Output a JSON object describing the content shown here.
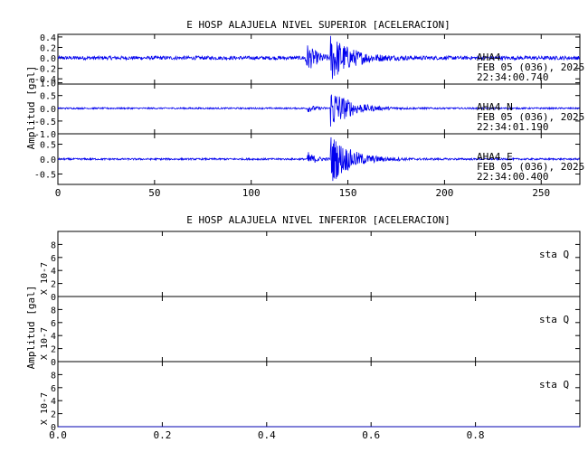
{
  "chart_data": [
    {
      "type": "line",
      "title": "E HOSP ALAJUELA NIVEL SUPERIOR [ACELERACION]",
      "ylabel": "Amplitud [gal]",
      "xlim": [
        0,
        270
      ],
      "x_ticks": [
        "0",
        "50",
        "100",
        "150",
        "200",
        "250"
      ],
      "traces": [
        {
          "label_lines": [
            "AHA4",
            "FEB 05 (036), 2025",
            "22:34:00.740"
          ],
          "ylim": [
            -0.5,
            0.45
          ],
          "y_ticks": [
            "0.4",
            "0.2",
            "0.0",
            "-0.2",
            "-0.4"
          ],
          "y_tick_values": [
            0.4,
            0.2,
            0.0,
            -0.2,
            -0.4
          ],
          "color": "#0000ee",
          "noise_amplitude": 0.035,
          "events": [
            {
              "t": 128,
              "peak": 0.3,
              "decay": 5
            },
            {
              "t": 141,
              "peak": 0.45,
              "decay": 10
            }
          ]
        },
        {
          "label_lines": [
            "AHA4   N",
            "FEB 05 (036), 2025",
            "22:34:01.190"
          ],
          "ylim": [
            -1.0,
            0.95
          ],
          "y_ticks": [
            "1.0",
            "0.5",
            "0.0",
            "-0.5",
            "-1.0"
          ],
          "y_tick_values": [
            1.0,
            0.5,
            0.0,
            -0.5,
            -1.0
          ],
          "color": "#0000ee",
          "noise_amplitude": 0.03,
          "events": [
            {
              "t": 129,
              "peak": 0.15,
              "decay": 4
            },
            {
              "t": 141,
              "peak": 0.9,
              "decay": 9
            }
          ]
        },
        {
          "label_lines": [
            "AHA4   E",
            "FEB 05 (036), 2025",
            "22:34:00.400"
          ],
          "ylim": [
            -0.85,
            0.85
          ],
          "y_ticks": [
            "0.5",
            "0.0",
            "-0.5"
          ],
          "y_tick_values": [
            0.5,
            0.0,
            -0.5
          ],
          "color": "#0000ee",
          "noise_amplitude": 0.03,
          "events": [
            {
              "t": 129,
              "peak": 0.25,
              "decay": 4
            },
            {
              "t": 141,
              "peak": 0.85,
              "decay": 10
            }
          ]
        }
      ]
    },
    {
      "type": "line",
      "title": "E HOSP ALAJUELA NIVEL INFERIOR [ACELERACION]",
      "ylabel": "Amplitud [gal]",
      "xlim": [
        0,
        1
      ],
      "x_ticks": [
        "0.0",
        "0.2",
        "0.4",
        "0.6",
        "0.8"
      ],
      "traces": [
        {
          "label_lines": [
            "sta  Q"
          ],
          "scale_label": "X 10-7",
          "ylim": [
            0,
            10
          ],
          "y_ticks": [
            "8",
            "6",
            "4",
            "2",
            "0"
          ],
          "y_tick_values": [
            8,
            6,
            4,
            2,
            0
          ],
          "color": "#0000ee",
          "values": [
            [
              0,
              0
            ],
            [
              1,
              0
            ]
          ]
        },
        {
          "label_lines": [
            "sta  Q"
          ],
          "scale_label": "X 10-7",
          "ylim": [
            0,
            10
          ],
          "y_ticks": [
            "8",
            "6",
            "4",
            "2",
            "0"
          ],
          "y_tick_values": [
            8,
            6,
            4,
            2,
            0
          ],
          "color": "#0000ee",
          "values": [
            [
              0,
              0
            ],
            [
              1,
              0
            ]
          ]
        },
        {
          "label_lines": [
            "sta  Q"
          ],
          "scale_label": "X 10-7",
          "ylim": [
            0,
            10
          ],
          "y_ticks": [
            "8",
            "6",
            "4",
            "2",
            "0"
          ],
          "y_tick_values": [
            8,
            6,
            4,
            2,
            0
          ],
          "color": "#0000ee",
          "values": [
            [
              0,
              0
            ],
            [
              1,
              0
            ]
          ]
        }
      ]
    }
  ]
}
